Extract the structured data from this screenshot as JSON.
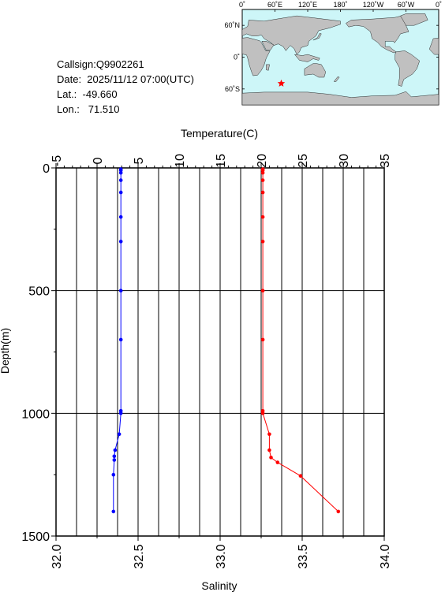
{
  "info": {
    "callsign": "Callsign:Q9902261",
    "date": "Date:  2025/11/12 07:00(UTC)",
    "lat": "Lat.:  -49.660",
    "lon": "Lon.:   71.510"
  },
  "map": {
    "top_labels": [
      "0˚",
      "60˚E",
      "120˚E",
      "180˚",
      "120˚W",
      "60˚W",
      "0˚"
    ],
    "lat_labels": [
      "60˚N",
      "0˚",
      "60˚S"
    ],
    "marker_lon": 71.51,
    "marker_lat": -49.66,
    "colors": {
      "ocean": "#cdf6f8",
      "land": "#c0c0c0",
      "marker": "#ff0000"
    }
  },
  "chart_data": {
    "type": "line",
    "top_axis_label": "Temperature(C)",
    "bottom_axis_label": "Salinity",
    "y_axis_label": "Depth(m)",
    "temperature_range": [
      -5,
      35
    ],
    "temperature_ticks": [
      -5,
      0,
      5,
      10,
      15,
      20,
      25,
      30,
      35
    ],
    "temperature_tick_labels": [
      "-5",
      "0",
      "5",
      "10",
      "15",
      "20",
      "25",
      "30",
      "35"
    ],
    "salinity_range": [
      32.0,
      34.0
    ],
    "salinity_ticks": [
      32.0,
      32.5,
      33.0,
      33.5,
      34.0
    ],
    "salinity_tick_labels": [
      "32.0",
      "32.5",
      "33.0",
      "33.5",
      "34.0"
    ],
    "depth_range": [
      0,
      1500
    ],
    "depth_ticks": [
      0,
      500,
      1000,
      1500
    ],
    "depth_tick_labels": [
      "0",
      "500",
      "1000",
      "1500"
    ],
    "grid": true,
    "series": [
      {
        "quantity": "temperature",
        "color": "#0000ff",
        "points": [
          [
            2.9,
            5
          ],
          [
            2.9,
            10
          ],
          [
            2.9,
            20
          ],
          [
            2.9,
            50
          ],
          [
            2.9,
            100
          ],
          [
            2.9,
            200
          ],
          [
            2.9,
            300
          ],
          [
            2.9,
            500
          ],
          [
            2.9,
            700
          ],
          [
            2.9,
            990
          ],
          [
            2.9,
            1000
          ],
          [
            2.7,
            1085
          ],
          [
            2.2,
            1150
          ],
          [
            2.1,
            1175
          ],
          [
            2.1,
            1190
          ],
          [
            2.0,
            1250
          ],
          [
            2.0,
            1400
          ]
        ]
      },
      {
        "quantity": "salinity",
        "color": "#ff0000",
        "points": [
          [
            33.26,
            5
          ],
          [
            33.26,
            10
          ],
          [
            33.26,
            20
          ],
          [
            33.26,
            50
          ],
          [
            33.26,
            100
          ],
          [
            33.26,
            200
          ],
          [
            33.26,
            300
          ],
          [
            33.26,
            500
          ],
          [
            33.26,
            700
          ],
          [
            33.26,
            990
          ],
          [
            33.26,
            1000
          ],
          [
            33.3,
            1085
          ],
          [
            33.3,
            1150
          ],
          [
            33.31,
            1180
          ],
          [
            33.35,
            1200
          ],
          [
            33.49,
            1255
          ],
          [
            33.72,
            1400
          ]
        ]
      }
    ]
  }
}
